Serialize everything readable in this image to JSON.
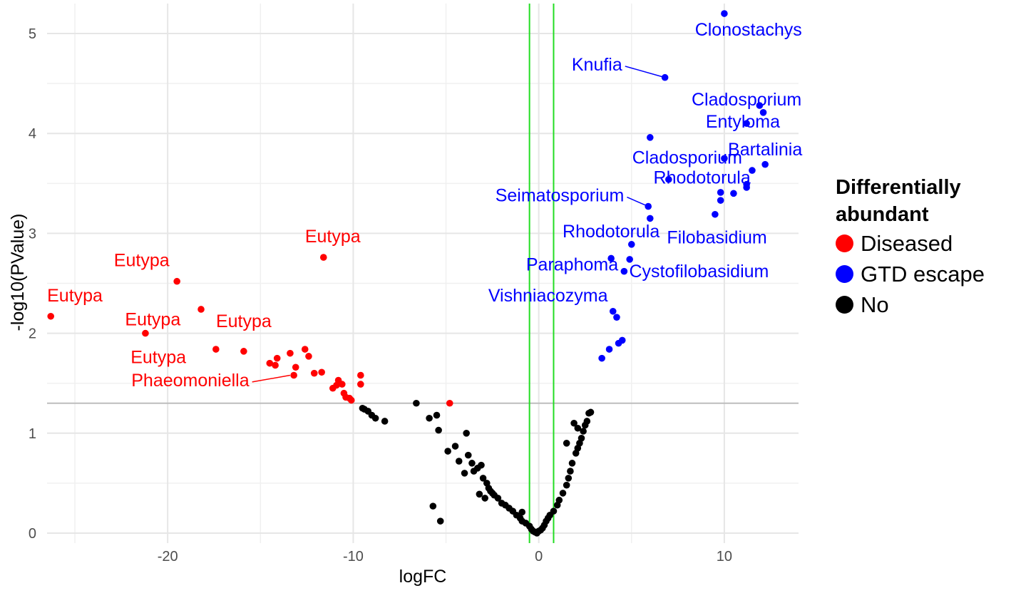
{
  "chart_data": {
    "type": "scatter",
    "title": "",
    "xlabel": "logFC",
    "ylabel": "-log10(PValue)",
    "xlim": [
      -26.5,
      14
    ],
    "ylim": [
      -0.1,
      5.3
    ],
    "x_ticks": [
      -20,
      -10,
      0,
      10
    ],
    "y_ticks": [
      0,
      1,
      2,
      3,
      4,
      5
    ],
    "x_tick_labels": [
      "-20",
      "-10",
      "0",
      "10"
    ],
    "y_tick_labels": [
      "0",
      "1",
      "2",
      "3",
      "4",
      "5"
    ],
    "grid": true,
    "hline": 1.3,
    "vlines": [
      -0.5,
      0.8
    ],
    "legend": {
      "position": "right",
      "title": "Differentially abundant",
      "title_lines": [
        "Differentially",
        "abundant"
      ],
      "entries": [
        {
          "name": "Diseased",
          "color": "#ff0000"
        },
        {
          "name": "GTD escape",
          "color": "#0000ff"
        },
        {
          "name": "No",
          "color": "#000000"
        }
      ]
    },
    "series": [
      {
        "name": "Diseased",
        "color": "#ff0000",
        "points": [
          [
            -26.3,
            2.17
          ],
          [
            -21.2,
            2.0
          ],
          [
            -19.5,
            2.52
          ],
          [
            -18.2,
            2.24
          ],
          [
            -17.4,
            1.84
          ],
          [
            -15.9,
            1.82
          ],
          [
            -14.5,
            1.7
          ],
          [
            -14.2,
            1.68
          ],
          [
            -14.1,
            1.75
          ],
          [
            -13.4,
            1.8
          ],
          [
            -13.2,
            1.58
          ],
          [
            -13.1,
            1.66
          ],
          [
            -12.6,
            1.84
          ],
          [
            -12.4,
            1.77
          ],
          [
            -12.1,
            1.6
          ],
          [
            -11.7,
            1.61
          ],
          [
            -11.6,
            2.76
          ],
          [
            -11.1,
            1.45
          ],
          [
            -10.9,
            1.48
          ],
          [
            -10.8,
            1.53
          ],
          [
            -10.6,
            1.49
          ],
          [
            -10.5,
            1.4
          ],
          [
            -10.4,
            1.36
          ],
          [
            -10.2,
            1.35
          ],
          [
            -10.1,
            1.33
          ],
          [
            -9.6,
            1.58
          ],
          [
            -9.6,
            1.49
          ],
          [
            -4.8,
            1.3
          ]
        ]
      },
      {
        "name": "GTD escape",
        "color": "#0000ff",
        "points": [
          [
            10.0,
            5.2
          ],
          [
            6.8,
            4.56
          ],
          [
            11.9,
            4.28
          ],
          [
            12.1,
            4.21
          ],
          [
            11.2,
            4.1
          ],
          [
            6.0,
            3.96
          ],
          [
            10.0,
            3.75
          ],
          [
            12.2,
            3.69
          ],
          [
            11.5,
            3.63
          ],
          [
            7.0,
            3.54
          ],
          [
            11.2,
            3.49
          ],
          [
            11.2,
            3.46
          ],
          [
            9.8,
            3.41
          ],
          [
            10.5,
            3.4
          ],
          [
            9.8,
            3.33
          ],
          [
            5.9,
            3.27
          ],
          [
            9.5,
            3.19
          ],
          [
            6.0,
            3.15
          ],
          [
            5.0,
            2.89
          ],
          [
            3.9,
            2.75
          ],
          [
            4.9,
            2.74
          ],
          [
            4.6,
            2.62
          ],
          [
            4.0,
            2.22
          ],
          [
            4.2,
            2.16
          ],
          [
            4.5,
            1.93
          ],
          [
            4.3,
            1.9
          ],
          [
            3.8,
            1.84
          ],
          [
            3.4,
            1.75
          ]
        ]
      },
      {
        "name": "No",
        "color": "#000000",
        "points": [
          [
            -9.5,
            1.25
          ],
          [
            -9.4,
            1.24
          ],
          [
            -9.2,
            1.22
          ],
          [
            -9.0,
            1.18
          ],
          [
            -8.8,
            1.15
          ],
          [
            -8.3,
            1.12
          ],
          [
            -6.6,
            1.3
          ],
          [
            -5.9,
            1.15
          ],
          [
            -5.5,
            1.18
          ],
          [
            -5.4,
            1.03
          ],
          [
            -4.9,
            0.82
          ],
          [
            -4.5,
            0.87
          ],
          [
            -4.3,
            0.72
          ],
          [
            -3.9,
            1.0
          ],
          [
            -3.8,
            0.78
          ],
          [
            -3.6,
            0.7
          ],
          [
            -3.5,
            0.62
          ],
          [
            -3.3,
            0.65
          ],
          [
            -3.1,
            0.68
          ],
          [
            -3.0,
            0.55
          ],
          [
            -2.8,
            0.5
          ],
          [
            -2.7,
            0.45
          ],
          [
            -2.6,
            0.42
          ],
          [
            -2.5,
            0.4
          ],
          [
            -2.4,
            0.38
          ],
          [
            -2.2,
            0.35
          ],
          [
            -2.0,
            0.3
          ],
          [
            -1.8,
            0.28
          ],
          [
            -1.6,
            0.25
          ],
          [
            -1.4,
            0.22
          ],
          [
            -1.2,
            0.18
          ],
          [
            -1.0,
            0.15
          ],
          [
            -0.9,
            0.12
          ],
          [
            -0.7,
            0.1
          ],
          [
            -0.5,
            0.07
          ],
          [
            -0.4,
            0.04
          ],
          [
            -0.3,
            0.02
          ],
          [
            -0.2,
            0.01
          ],
          [
            -0.1,
            0.0
          ],
          [
            0.0,
            0.02
          ],
          [
            0.1,
            0.03
          ],
          [
            0.2,
            0.05
          ],
          [
            0.3,
            0.08
          ],
          [
            0.4,
            0.12
          ],
          [
            0.5,
            0.15
          ],
          [
            0.6,
            0.18
          ],
          [
            0.8,
            0.22
          ],
          [
            1.0,
            0.28
          ],
          [
            1.1,
            0.33
          ],
          [
            1.3,
            0.4
          ],
          [
            1.5,
            0.48
          ],
          [
            1.6,
            0.55
          ],
          [
            1.7,
            0.62
          ],
          [
            1.8,
            0.7
          ],
          [
            2.0,
            0.8
          ],
          [
            2.1,
            0.85
          ],
          [
            2.2,
            0.9
          ],
          [
            2.3,
            0.95
          ],
          [
            2.4,
            1.02
          ],
          [
            2.5,
            1.08
          ],
          [
            2.6,
            1.12
          ],
          [
            2.7,
            1.2
          ],
          [
            2.8,
            1.21
          ],
          [
            1.9,
            1.1
          ],
          [
            2.1,
            1.05
          ],
          [
            1.5,
            0.9
          ],
          [
            -5.7,
            0.27
          ],
          [
            -5.3,
            0.12
          ],
          [
            -3.2,
            0.39
          ],
          [
            -0.9,
            0.21
          ],
          [
            -4.0,
            0.6
          ],
          [
            -2.9,
            0.35
          ]
        ]
      }
    ],
    "annotations": [
      {
        "text": "Clonostachys",
        "x": 11.3,
        "y": 4.98,
        "color": "#0000ff",
        "anchor": "middle"
      },
      {
        "text": "Knufia",
        "x": 4.5,
        "y": 4.63,
        "color": "#0000ff",
        "anchor": "end",
        "line_to": [
          6.8,
          4.56
        ]
      },
      {
        "text": "Cladosporium",
        "x": 11.2,
        "y": 4.28,
        "color": "#0000ff",
        "anchor": "middle"
      },
      {
        "text": "Entyloma",
        "x": 11.0,
        "y": 4.06,
        "color": "#0000ff",
        "anchor": "middle"
      },
      {
        "text": "Bartalinia",
        "x": 12.2,
        "y": 3.78,
        "color": "#0000ff",
        "anchor": "middle"
      },
      {
        "text": "Cladosporium",
        "x": 8.0,
        "y": 3.7,
        "color": "#0000ff",
        "anchor": "middle"
      },
      {
        "text": "Rhodotorula",
        "x": 8.8,
        "y": 3.5,
        "color": "#0000ff",
        "anchor": "middle"
      },
      {
        "text": "Seimatosporium",
        "x": 4.6,
        "y": 3.32,
        "color": "#0000ff",
        "anchor": "end",
        "line_to": [
          5.9,
          3.27
        ]
      },
      {
        "text": "Filobasidium",
        "x": 12.3,
        "y": 2.9,
        "color": "#0000ff",
        "anchor": "end"
      },
      {
        "text": "Rhodotorula",
        "x": 3.9,
        "y": 2.96,
        "color": "#0000ff",
        "anchor": "middle"
      },
      {
        "text": "Paraphoma",
        "x": 1.8,
        "y": 2.63,
        "color": "#0000ff",
        "anchor": "middle"
      },
      {
        "text": "Cystofilobasidium",
        "x": 12.4,
        "y": 2.56,
        "color": "#0000ff",
        "anchor": "end"
      },
      {
        "text": "Vishniacozyma",
        "x": 0.5,
        "y": 2.32,
        "color": "#0000ff",
        "anchor": "middle"
      },
      {
        "text": "Eutypa",
        "x": -11.1,
        "y": 2.91,
        "color": "#ff0000",
        "anchor": "middle"
      },
      {
        "text": "Eutypa",
        "x": -21.4,
        "y": 2.67,
        "color": "#ff0000",
        "anchor": "middle"
      },
      {
        "text": "Eutypa",
        "x": -25.0,
        "y": 2.32,
        "color": "#ff0000",
        "anchor": "middle"
      },
      {
        "text": "Eutypa",
        "x": -20.8,
        "y": 2.08,
        "color": "#ff0000",
        "anchor": "middle"
      },
      {
        "text": "Eutypa",
        "x": -15.9,
        "y": 2.06,
        "color": "#ff0000",
        "anchor": "middle"
      },
      {
        "text": "Eutypa",
        "x": -20.5,
        "y": 1.7,
        "color": "#ff0000",
        "anchor": "middle"
      },
      {
        "text": "Phaeomoniella",
        "x": -15.6,
        "y": 1.47,
        "color": "#ff0000",
        "anchor": "end",
        "line_to": [
          -13.4,
          1.58
        ]
      }
    ]
  }
}
